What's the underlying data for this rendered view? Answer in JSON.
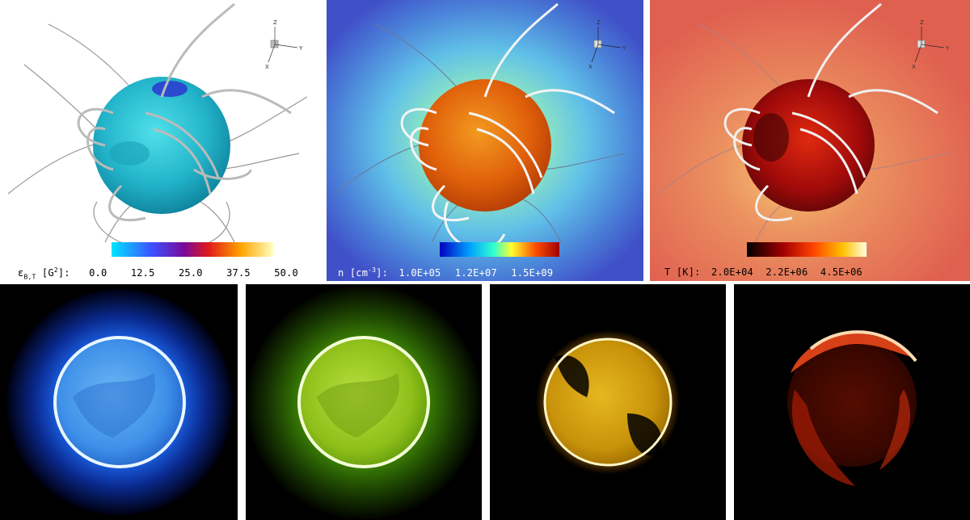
{
  "top_panels": [
    {
      "colorbar_label_html": "ε<sub style='font-size:8px'>B,T</sub> [G<sup style='font-size:8px'>2</sup>]:",
      "ticks": [
        "0.0",
        "12.5",
        "25.0",
        "37.5",
        "50.0"
      ],
      "colors": {
        "background": "#ffffff",
        "sphere": "#2bb8cf",
        "label_text": "#000000"
      }
    },
    {
      "colorbar_label_html": "n [cm<sup style='font-size:8px'>-3</sup>]:",
      "ticks": [
        "1.0E+05",
        "1.2E+07",
        "1.5E+09"
      ],
      "colors": {
        "background": "#4c66cc",
        "sphere": "#e8680e",
        "label_text": "#ffffff"
      }
    },
    {
      "colorbar_label_html": "T [K]:",
      "ticks": [
        "2.0E+04",
        "2.2E+06",
        "4.5E+06"
      ],
      "colors": {
        "background": "#e06650",
        "sphere": "#a80e0e",
        "label_text": "#000000"
      }
    }
  ],
  "axes_triad": {
    "z": "Z",
    "y": "Y",
    "x": "X"
  },
  "bottom_panels": [
    {
      "theme": "blue",
      "colors": {
        "glow": "#1a5fe0",
        "disk": "#4fa3ef",
        "rim": "#e8f6ff"
      }
    },
    {
      "theme": "green",
      "colors": {
        "glow": "#3f8a05",
        "disk": "#8fbf1a",
        "rim": "#f4ffd8"
      }
    },
    {
      "theme": "yellow",
      "colors": {
        "glow": "#c88a00",
        "disk": "#d9a80a",
        "rim": "#fff6c8"
      }
    },
    {
      "theme": "red",
      "colors": {
        "glow": "#8a1a00",
        "disk": "#b8280a",
        "rim": "#ffd9b0"
      }
    }
  ]
}
